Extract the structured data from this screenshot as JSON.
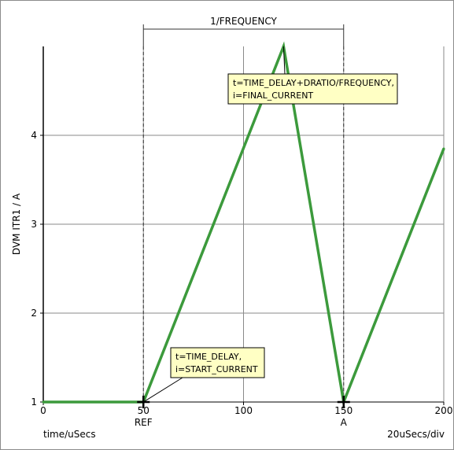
{
  "chart_data": {
    "type": "line",
    "xlabel": "time/uSecs",
    "ylabel": "DVM ITR1 / A",
    "x_scale_label": "20uSecs/div",
    "xlim": [
      0,
      200
    ],
    "ylim": [
      1,
      5
    ],
    "x_ticks": [
      0,
      50,
      100,
      150,
      200
    ],
    "y_ticks": [
      1,
      2,
      3,
      4
    ],
    "grid": true,
    "series": [
      {
        "color": "#3c9a3c",
        "x": [
          0,
          50,
          120,
          150,
          200
        ],
        "y": [
          1,
          1,
          5,
          1,
          3.85
        ]
      }
    ],
    "cursors": [
      {
        "label": "REF",
        "x": 50
      },
      {
        "label": "A",
        "x": 150
      }
    ],
    "period_marker": {
      "label": "1/FREQUENCY",
      "x_start": 50,
      "x_end": 150
    },
    "annotations": [
      {
        "lines": [
          "t=TIME_DELAY+DRATIO/FREQUENCY,",
          "i=FINAL_CURRENT"
        ],
        "point": [
          120,
          5
        ]
      },
      {
        "lines": [
          "t=TIME_DELAY,",
          "i=START_CURRENT"
        ],
        "point": [
          50,
          1
        ]
      }
    ]
  }
}
